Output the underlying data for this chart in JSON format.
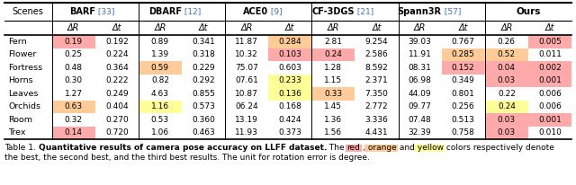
{
  "col_groups": [
    {
      "name": "BARF",
      "ref": "[33]",
      "cols": [
        "ΔR",
        "Δt"
      ]
    },
    {
      "name": "DBARF",
      "ref": "[12]",
      "cols": [
        "ΔR",
        "Δt"
      ]
    },
    {
      "name": "ACE0",
      "ref": "[9]",
      "cols": [
        "ΔR",
        "Δt"
      ]
    },
    {
      "name": "CF-3DGS",
      "ref": "[21]",
      "cols": [
        "ΔR",
        "Δt"
      ]
    },
    {
      "name": "Spann3R",
      "ref": "[57]",
      "cols": [
        "ΔR",
        "Δt"
      ]
    },
    {
      "name": "Ours",
      "ref": "",
      "cols": [
        "ΔR",
        "Δt"
      ]
    }
  ],
  "scenes": [
    "Fern",
    "Flower",
    "Fortress",
    "Horns",
    "Leaves",
    "Orchids",
    "Room",
    "Trex"
  ],
  "data": [
    [
      "0.19",
      "0.192",
      "0.89",
      "0.341",
      "11.87",
      "0.284",
      "2.81",
      "9.254",
      "39.03",
      "0.767",
      "0.26",
      "0.005"
    ],
    [
      "0.25",
      "0.224",
      "1.39",
      "0.318",
      "10.32",
      "0.103",
      "0.24",
      "2.586",
      "11.91",
      "0.285",
      "0.52",
      "0.011"
    ],
    [
      "0.48",
      "0.364",
      "0.59",
      "0.229",
      "75.07",
      "0.603",
      "1.28",
      "8.592",
      "08.31",
      "0.152",
      "0.04",
      "0.002"
    ],
    [
      "0.30",
      "0.222",
      "0.82",
      "0.292",
      "07.61",
      "0.233",
      "1.15",
      "2.371",
      "06.98",
      "0.349",
      "0.03",
      "0.001"
    ],
    [
      "1.27",
      "0.249",
      "4.63",
      "0.855",
      "10.87",
      "0.136",
      "0.33",
      "7.350",
      "44.09",
      "0.801",
      "0.22",
      "0.006"
    ],
    [
      "0.63",
      "0.404",
      "1.16",
      "0.573",
      "06.24",
      "0.168",
      "1.45",
      "2.772",
      "09.77",
      "0.256",
      "0.24",
      "0.006"
    ],
    [
      "0.32",
      "0.270",
      "0.53",
      "0.360",
      "13.19",
      "0.424",
      "1.36",
      "3.336",
      "07.48",
      "0.513",
      "0.03",
      "0.001"
    ],
    [
      "0.14",
      "0.720",
      "1.06",
      "0.463",
      "11.93",
      "0.373",
      "1.56",
      "4.431",
      "32.39",
      "0.758",
      "0.03",
      "0.010"
    ]
  ],
  "cell_colors": [
    [
      "red",
      "none",
      "none",
      "none",
      "none",
      "orange",
      "none",
      "none",
      "none",
      "none",
      "none",
      "red"
    ],
    [
      "none",
      "none",
      "none",
      "none",
      "none",
      "red",
      "red",
      "none",
      "none",
      "orange",
      "orange",
      "none"
    ],
    [
      "none",
      "none",
      "orange",
      "none",
      "none",
      "none",
      "none",
      "none",
      "none",
      "red",
      "red",
      "red"
    ],
    [
      "none",
      "none",
      "none",
      "none",
      "none",
      "yellow",
      "none",
      "none",
      "none",
      "none",
      "red",
      "red"
    ],
    [
      "none",
      "none",
      "none",
      "none",
      "none",
      "yellow",
      "orange",
      "none",
      "none",
      "none",
      "none",
      "none"
    ],
    [
      "orange",
      "none",
      "yellow",
      "none",
      "none",
      "none",
      "none",
      "none",
      "none",
      "none",
      "yellow",
      "none"
    ],
    [
      "none",
      "none",
      "none",
      "none",
      "none",
      "none",
      "none",
      "none",
      "none",
      "none",
      "red",
      "red"
    ],
    [
      "red",
      "none",
      "none",
      "none",
      "none",
      "none",
      "none",
      "none",
      "none",
      "none",
      "red",
      "none"
    ]
  ],
  "color_red": "#FFAAAA",
  "color_orange": "#FFCC99",
  "color_yellow": "#FFFF99",
  "ref_color": "#4472C4",
  "fig_width": 6.4,
  "fig_height": 2.06,
  "dpi": 100
}
